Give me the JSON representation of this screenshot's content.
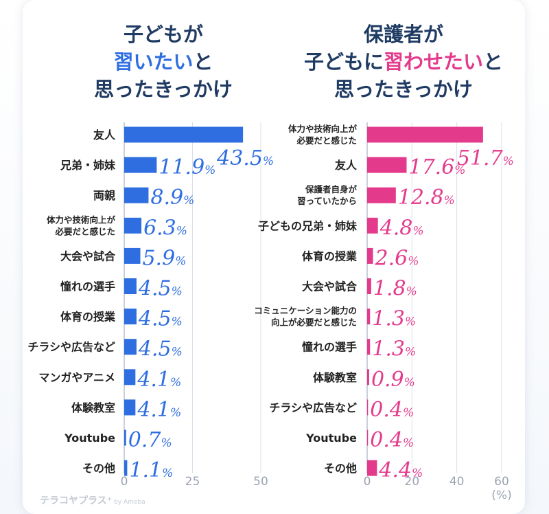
{
  "titles": {
    "left": {
      "line1": "子どもが",
      "line2_highlight": "習いたい",
      "line2_rest": "と",
      "line3": "思ったきっかけ"
    },
    "right": {
      "line1": "保護者が",
      "line2_pre": "子どもに",
      "line2_highlight": "習わせたい",
      "line2_rest": "と",
      "line3": "思ったきっかけ"
    }
  },
  "colors": {
    "left_bar": "#2f6ee0",
    "right_bar": "#e43a8c",
    "title": "#1f3b63",
    "grid": "#d9dfe8"
  },
  "logo": {
    "text": "テラコヤプラス⁺",
    "by": "by Ameba"
  },
  "chart_data": [
    {
      "type": "bar",
      "orientation": "horizontal",
      "title": "子どもが習いたいと思ったきっかけ",
      "categories": [
        [
          "友人"
        ],
        [
          "兄弟・姉妹"
        ],
        [
          "両親"
        ],
        [
          "体力や技術向上が",
          "必要だと感じた"
        ],
        [
          "大会や試合"
        ],
        [
          "憧れの選手"
        ],
        [
          "体育の授業"
        ],
        [
          "チラシや広告など"
        ],
        [
          "マンガやアニメ"
        ],
        [
          "体験教室"
        ],
        [
          "Youtube"
        ],
        [
          "その他"
        ]
      ],
      "values": [
        43.5,
        11.9,
        8.9,
        6.3,
        5.9,
        4.5,
        4.5,
        4.5,
        4.1,
        4.1,
        0.7,
        1.1
      ],
      "labels": [
        "43.5",
        "11.9",
        "8.9",
        "6.3",
        "5.9",
        "4.5",
        "4.5",
        "4.5",
        "4.1",
        "4.1",
        "0.7",
        "1.1"
      ],
      "unit": "%",
      "xlim": [
        0,
        50
      ],
      "ticks": [
        "0",
        "25",
        "50"
      ]
    },
    {
      "type": "bar",
      "orientation": "horizontal",
      "title": "保護者が子どもに習わせたいと思ったきっかけ",
      "categories": [
        [
          "体力や技術向上が",
          "必要だと感じた"
        ],
        [
          "友人"
        ],
        [
          "保護者自身が",
          "習っていたから"
        ],
        [
          "子どもの兄弟・姉妹"
        ],
        [
          "体育の授業"
        ],
        [
          "大会や試合"
        ],
        [
          "コミュニケーション能力の",
          "向上が必要だと感じた"
        ],
        [
          "憧れの選手"
        ],
        [
          "体験教室"
        ],
        [
          "チラシや広告など"
        ],
        [
          "Youtube"
        ],
        [
          "その他"
        ]
      ],
      "values": [
        51.7,
        17.6,
        12.8,
        4.8,
        2.6,
        1.8,
        1.3,
        1.3,
        0.9,
        0.4,
        0.4,
        4.4
      ],
      "labels": [
        "51.7",
        "17.6",
        "12.8",
        "4.8",
        "2.6",
        "1.8",
        "1.3",
        "1.3",
        "0.9",
        "0.4",
        "0.4",
        "4.4"
      ],
      "unit": "%",
      "xlim": [
        0,
        60
      ],
      "ticks": [
        "0",
        "20",
        "40",
        "60"
      ],
      "axis_unit_label": "(%)"
    }
  ]
}
